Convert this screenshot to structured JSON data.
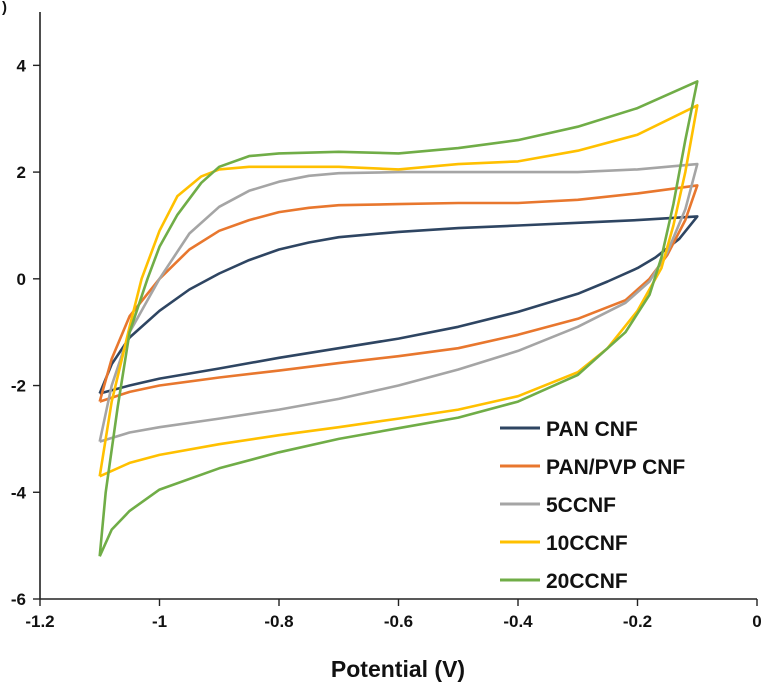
{
  "panel_letter": ")",
  "chart_data": {
    "type": "line",
    "xlabel": "Potential (V)",
    "ylabel": "",
    "xlim": [
      -1.2,
      0
    ],
    "ylim": [
      -6,
      5
    ],
    "x_ticks": [
      "-1.2",
      "-1",
      "-0.8",
      "-0.6",
      "-0.4",
      "-0.2",
      "0"
    ],
    "y_ticks": [
      "-6",
      "-4",
      "-2",
      "0",
      "2",
      "4"
    ],
    "grid": false,
    "legend_position": "bottom-right",
    "series": [
      {
        "name": "PAN CNF",
        "color": "#2e4562",
        "upper": [
          [
            -1.1,
            -2.15
          ],
          [
            -1.08,
            -1.6
          ],
          [
            -1.05,
            -1.1
          ],
          [
            -1.0,
            -0.6
          ],
          [
            -0.95,
            -0.2
          ],
          [
            -0.9,
            0.1
          ],
          [
            -0.85,
            0.35
          ],
          [
            -0.8,
            0.55
          ],
          [
            -0.75,
            0.68
          ],
          [
            -0.7,
            0.78
          ],
          [
            -0.6,
            0.88
          ],
          [
            -0.5,
            0.95
          ],
          [
            -0.4,
            1.0
          ],
          [
            -0.3,
            1.05
          ],
          [
            -0.2,
            1.1
          ],
          [
            -0.1,
            1.17
          ]
        ],
        "lower": [
          [
            -0.1,
            1.17
          ],
          [
            -0.13,
            0.75
          ],
          [
            -0.17,
            0.4
          ],
          [
            -0.2,
            0.2
          ],
          [
            -0.25,
            -0.05
          ],
          [
            -0.3,
            -0.28
          ],
          [
            -0.4,
            -0.62
          ],
          [
            -0.5,
            -0.9
          ],
          [
            -0.6,
            -1.12
          ],
          [
            -0.7,
            -1.3
          ],
          [
            -0.8,
            -1.48
          ],
          [
            -0.9,
            -1.68
          ],
          [
            -1.0,
            -1.87
          ],
          [
            -1.05,
            -2.0
          ],
          [
            -1.1,
            -2.15
          ]
        ]
      },
      {
        "name": "PAN/PVP CNF",
        "color": "#e8772e",
        "upper": [
          [
            -1.1,
            -2.3
          ],
          [
            -1.08,
            -1.5
          ],
          [
            -1.05,
            -0.7
          ],
          [
            -1.0,
            0.0
          ],
          [
            -0.95,
            0.55
          ],
          [
            -0.9,
            0.9
          ],
          [
            -0.85,
            1.1
          ],
          [
            -0.8,
            1.25
          ],
          [
            -0.75,
            1.33
          ],
          [
            -0.7,
            1.38
          ],
          [
            -0.6,
            1.4
          ],
          [
            -0.5,
            1.42
          ],
          [
            -0.4,
            1.42
          ],
          [
            -0.3,
            1.48
          ],
          [
            -0.2,
            1.6
          ],
          [
            -0.1,
            1.75
          ]
        ],
        "lower": [
          [
            -0.1,
            1.75
          ],
          [
            -0.12,
            1.1
          ],
          [
            -0.15,
            0.45
          ],
          [
            -0.18,
            0.0
          ],
          [
            -0.22,
            -0.4
          ],
          [
            -0.3,
            -0.75
          ],
          [
            -0.4,
            -1.05
          ],
          [
            -0.5,
            -1.3
          ],
          [
            -0.6,
            -1.45
          ],
          [
            -0.7,
            -1.58
          ],
          [
            -0.8,
            -1.72
          ],
          [
            -0.9,
            -1.85
          ],
          [
            -1.0,
            -2.0
          ],
          [
            -1.05,
            -2.12
          ],
          [
            -1.1,
            -2.3
          ]
        ]
      },
      {
        "name": "5CCNF",
        "color": "#a5a5a5",
        "upper": [
          [
            -1.1,
            -3.05
          ],
          [
            -1.08,
            -2.0
          ],
          [
            -1.05,
            -1.0
          ],
          [
            -1.0,
            0.0
          ],
          [
            -0.95,
            0.85
          ],
          [
            -0.9,
            1.35
          ],
          [
            -0.85,
            1.65
          ],
          [
            -0.8,
            1.82
          ],
          [
            -0.75,
            1.93
          ],
          [
            -0.7,
            1.98
          ],
          [
            -0.6,
            2.0
          ],
          [
            -0.5,
            2.0
          ],
          [
            -0.4,
            2.0
          ],
          [
            -0.3,
            2.0
          ],
          [
            -0.2,
            2.05
          ],
          [
            -0.1,
            2.15
          ]
        ],
        "lower": [
          [
            -0.1,
            2.15
          ],
          [
            -0.12,
            1.3
          ],
          [
            -0.15,
            0.5
          ],
          [
            -0.18,
            -0.05
          ],
          [
            -0.22,
            -0.45
          ],
          [
            -0.3,
            -0.9
          ],
          [
            -0.4,
            -1.35
          ],
          [
            -0.5,
            -1.7
          ],
          [
            -0.6,
            -2.0
          ],
          [
            -0.7,
            -2.25
          ],
          [
            -0.8,
            -2.45
          ],
          [
            -0.9,
            -2.62
          ],
          [
            -1.0,
            -2.78
          ],
          [
            -1.05,
            -2.88
          ],
          [
            -1.1,
            -3.05
          ]
        ]
      },
      {
        "name": "10CCNF",
        "color": "#ffc000",
        "upper": [
          [
            -1.1,
            -3.7
          ],
          [
            -1.08,
            -2.3
          ],
          [
            -1.05,
            -0.9
          ],
          [
            -1.03,
            0.0
          ],
          [
            -1.0,
            0.9
          ],
          [
            -0.97,
            1.55
          ],
          [
            -0.93,
            1.92
          ],
          [
            -0.9,
            2.05
          ],
          [
            -0.85,
            2.1
          ],
          [
            -0.8,
            2.1
          ],
          [
            -0.7,
            2.1
          ],
          [
            -0.6,
            2.05
          ],
          [
            -0.5,
            2.15
          ],
          [
            -0.4,
            2.2
          ],
          [
            -0.3,
            2.4
          ],
          [
            -0.2,
            2.7
          ],
          [
            -0.1,
            3.25
          ]
        ],
        "lower": [
          [
            -0.1,
            3.25
          ],
          [
            -0.12,
            2.0
          ],
          [
            -0.14,
            1.0
          ],
          [
            -0.16,
            0.2
          ],
          [
            -0.2,
            -0.6
          ],
          [
            -0.25,
            -1.3
          ],
          [
            -0.3,
            -1.75
          ],
          [
            -0.4,
            -2.2
          ],
          [
            -0.5,
            -2.45
          ],
          [
            -0.6,
            -2.62
          ],
          [
            -0.7,
            -2.78
          ],
          [
            -0.8,
            -2.93
          ],
          [
            -0.9,
            -3.1
          ],
          [
            -1.0,
            -3.3
          ],
          [
            -1.05,
            -3.45
          ],
          [
            -1.1,
            -3.7
          ]
        ]
      },
      {
        "name": "20CCNF",
        "color": "#70ad47",
        "upper": [
          [
            -1.1,
            -5.2
          ],
          [
            -1.09,
            -4.0
          ],
          [
            -1.07,
            -2.4
          ],
          [
            -1.05,
            -1.0
          ],
          [
            -1.02,
            0.0
          ],
          [
            -1.0,
            0.6
          ],
          [
            -0.97,
            1.2
          ],
          [
            -0.93,
            1.8
          ],
          [
            -0.9,
            2.1
          ],
          [
            -0.85,
            2.3
          ],
          [
            -0.8,
            2.35
          ],
          [
            -0.7,
            2.38
          ],
          [
            -0.6,
            2.35
          ],
          [
            -0.5,
            2.45
          ],
          [
            -0.4,
            2.6
          ],
          [
            -0.3,
            2.85
          ],
          [
            -0.2,
            3.2
          ],
          [
            -0.1,
            3.7
          ]
        ],
        "lower": [
          [
            -0.1,
            3.7
          ],
          [
            -0.12,
            2.6
          ],
          [
            -0.14,
            1.4
          ],
          [
            -0.16,
            0.4
          ],
          [
            -0.18,
            -0.3
          ],
          [
            -0.22,
            -1.0
          ],
          [
            -0.3,
            -1.8
          ],
          [
            -0.4,
            -2.3
          ],
          [
            -0.5,
            -2.6
          ],
          [
            -0.6,
            -2.8
          ],
          [
            -0.7,
            -3.0
          ],
          [
            -0.8,
            -3.25
          ],
          [
            -0.9,
            -3.55
          ],
          [
            -1.0,
            -3.95
          ],
          [
            -1.05,
            -4.35
          ],
          [
            -1.08,
            -4.7
          ],
          [
            -1.1,
            -5.2
          ]
        ]
      }
    ]
  }
}
